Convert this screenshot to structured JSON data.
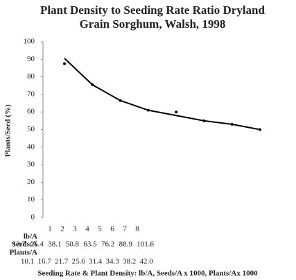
{
  "chart_data": {
    "type": "line",
    "title": [
      "Plant Density to Seeding Rate Ratio Dryland",
      "Grain Sorghum, Walsh, 1998"
    ],
    "y_label": "Plants/Seed (%)",
    "x_label": "Seeding Rate & Plant Density: lb/A, Seeds/A x 1000, Plants/Ax 1000",
    "categories": [
      "1",
      "2",
      "3",
      "4",
      "5",
      "6",
      "7",
      "8"
    ],
    "series": [
      {
        "style": "markers",
        "color": "#000000",
        "values": [
          87.5,
          75.5,
          66.5,
          61,
          60,
          55,
          53,
          50
        ]
      },
      {
        "style": "line",
        "color": "#000000",
        "values": [
          90.5,
          75.5,
          66.5,
          61,
          58,
          55,
          53,
          50
        ]
      }
    ],
    "rows": [
      {
        "label": "lb/A"
      },
      {
        "label": "Seeds/A",
        "values": [
          "12.7",
          "25.4",
          "38.1",
          "50.8",
          "63.5",
          "76.2",
          "88.9",
          "101.6"
        ]
      },
      {
        "label": "Plants/A",
        "values": [
          "10.1",
          "16.7",
          "21.7",
          "25.6",
          "31.4",
          "34.3",
          "38.2",
          "42.0"
        ]
      }
    ],
    "ylim": [
      0,
      100
    ],
    "yticks": [
      0,
      10,
      20,
      30,
      40,
      50,
      60,
      70,
      80,
      90,
      100
    ]
  }
}
